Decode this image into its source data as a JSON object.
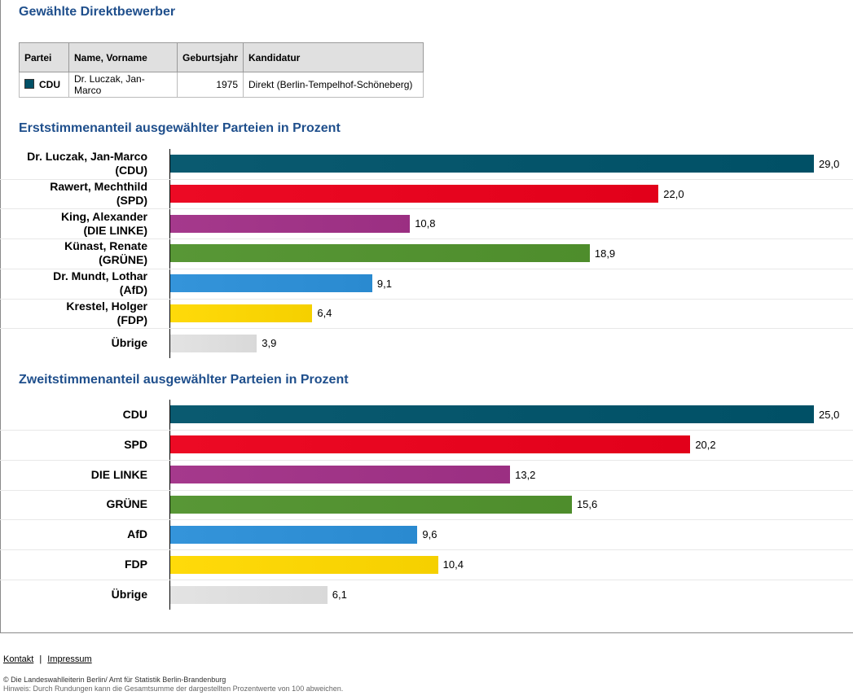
{
  "headings": {
    "elected": "Gewählte Direktbewerber",
    "first_vote": "Erststimmenanteil ausgewählter Parteien in Prozent",
    "second_vote": "Zweitstimmenanteil ausgewählter Parteien in Prozent"
  },
  "table": {
    "headers": [
      "Partei",
      "Name, Vorname",
      "Geburtsjahr",
      "Kandidatur"
    ],
    "row": {
      "party": "CDU",
      "party_color": "#005066",
      "name": "Dr. Luczak, Jan-Marco",
      "year": "1975",
      "candidacy": "Direkt (Berlin-Tempelhof-Schöneberg)"
    }
  },
  "chart_data": [
    {
      "type": "bar",
      "orientation": "horizontal",
      "title": "Erststimmenanteil ausgewählter Parteien in Prozent",
      "categories": [
        [
          "Dr. Luczak, Jan-Marco",
          "(CDU)"
        ],
        [
          "Rawert, Mechthild",
          "(SPD)"
        ],
        [
          "King, Alexander",
          "(DIE LINKE)"
        ],
        [
          "Künast, Renate",
          "(GRÜNE)"
        ],
        [
          "Dr. Mundt, Lothar",
          "(AfD)"
        ],
        [
          "Krestel, Holger",
          "(FDP)"
        ],
        [
          "Übrige"
        ]
      ],
      "values": [
        29.0,
        22.0,
        10.8,
        18.9,
        9.1,
        6.4,
        3.9
      ],
      "value_labels": [
        "29,0",
        "22,0",
        "10,8",
        "18,9",
        "9,1",
        "6,4",
        "3,9"
      ],
      "colors": [
        "#005066",
        "#e2001a",
        "#9b2f82",
        "#4e8d2c",
        "#2a8ad0",
        "#f5d000",
        "#d9d9d9"
      ],
      "xlim": [
        0,
        29.0
      ]
    },
    {
      "type": "bar",
      "orientation": "horizontal",
      "title": "Zweitstimmenanteil ausgewählter Parteien in Prozent",
      "categories": [
        [
          "CDU"
        ],
        [
          "SPD"
        ],
        [
          "DIE LINKE"
        ],
        [
          "GRÜNE"
        ],
        [
          "AfD"
        ],
        [
          "FDP"
        ],
        [
          "Übrige"
        ]
      ],
      "values": [
        25.0,
        20.2,
        13.2,
        15.6,
        9.6,
        10.4,
        6.1
      ],
      "value_labels": [
        "25,0",
        "20,2",
        "13,2",
        "15,6",
        "9,6",
        "10,4",
        "6,1"
      ],
      "colors": [
        "#005066",
        "#e2001a",
        "#9b2f82",
        "#4e8d2c",
        "#2a8ad0",
        "#f5d000",
        "#d9d9d9"
      ],
      "xlim": [
        0,
        25.0
      ]
    }
  ],
  "footer": {
    "kontakt": "Kontakt",
    "separator": "|",
    "impressum": "Impressum",
    "copyright": "© Die Landeswahlleiterin Berlin/ Amt für Statistik Berlin-Brandenburg",
    "hint": "Hinweis: Durch Rundungen kann die Gesamtsumme der dargestellten Prozentwerte von 100 abweichen."
  }
}
